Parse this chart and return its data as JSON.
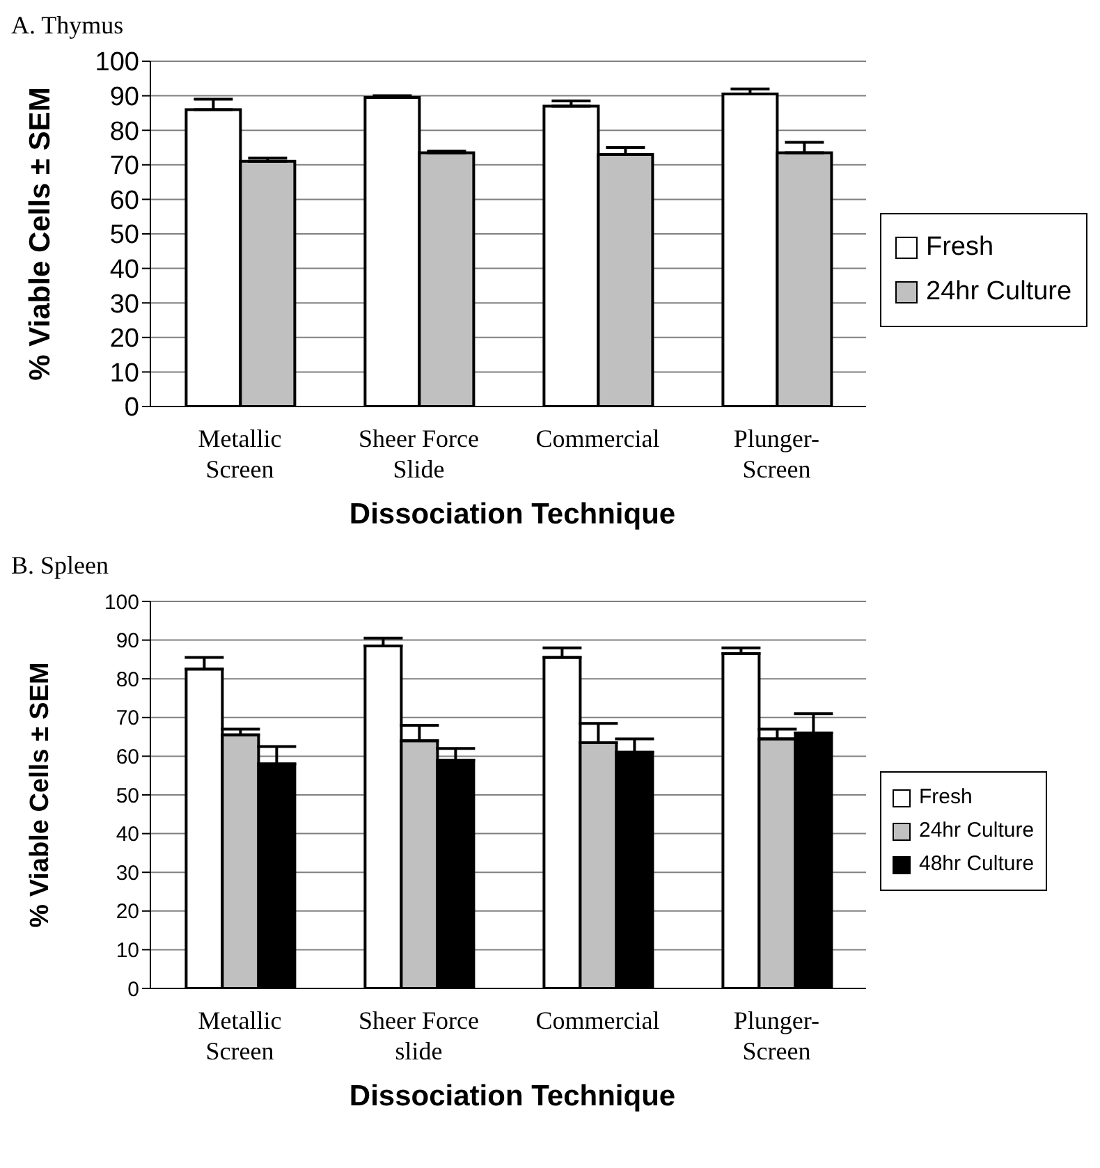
{
  "chart_data": [
    {
      "type": "bar",
      "title": "A.  Thymus",
      "xlabel": "Dissociation Technique",
      "ylabel": "% Viable Cells ± SEM",
      "categories": [
        "Metallic Screen",
        "Sheer Force Slide",
        "Commercial",
        "Plunger-Screen"
      ],
      "ylim": [
        0,
        100
      ],
      "yticks": [
        0,
        10,
        20,
        30,
        40,
        50,
        60,
        70,
        80,
        90,
        100
      ],
      "grid": "y",
      "legend": "right",
      "series": [
        {
          "name": "Fresh",
          "color": "#ffffff",
          "values": [
            86,
            89.5,
            87,
            90.5
          ],
          "errors": [
            [
              86,
              89
            ],
            [
              89.5,
              90
            ],
            [
              87,
              88.5
            ],
            [
              90.5,
              92
            ]
          ]
        },
        {
          "name": "24hr Culture",
          "color": "#c0c0c0",
          "values": [
            71,
            73.5,
            73,
            73.5
          ],
          "errors": [
            [
              71,
              72
            ],
            [
              73.5,
              74
            ],
            [
              73,
              75
            ],
            [
              73.5,
              76.5
            ]
          ]
        }
      ]
    },
    {
      "type": "bar",
      "title": "B.  Spleen",
      "xlabel": "Dissociation Technique",
      "ylabel": "% Viable Cells ± SEM",
      "categories": [
        "Metallic Screen",
        "Sheer Force slide",
        "Commercial",
        "Plunger-Screen"
      ],
      "ylim": [
        0,
        100
      ],
      "yticks": [
        0,
        10,
        20,
        30,
        40,
        50,
        60,
        70,
        80,
        90,
        100
      ],
      "grid": "y",
      "legend": "right",
      "series": [
        {
          "name": "Fresh",
          "color": "#ffffff",
          "values": [
            82.5,
            88.5,
            85.5,
            86.5
          ],
          "errors": [
            [
              82.5,
              85.5
            ],
            [
              88.5,
              90.5
            ],
            [
              85.5,
              88
            ],
            [
              86.5,
              88
            ]
          ]
        },
        {
          "name": "24hr Culture",
          "color": "#c0c0c0",
          "values": [
            65.5,
            64,
            63.5,
            64.5
          ],
          "errors": [
            [
              65.5,
              67
            ],
            [
              64,
              68
            ],
            [
              63.5,
              68.5
            ],
            [
              64.5,
              67
            ]
          ]
        },
        {
          "name": "48hr Culture",
          "color": "#000000",
          "values": [
            58,
            59,
            61,
            66
          ],
          "errors": [
            [
              58,
              62.5
            ],
            [
              59,
              62
            ],
            [
              61,
              64.5
            ],
            [
              66,
              71
            ]
          ]
        }
      ]
    }
  ]
}
